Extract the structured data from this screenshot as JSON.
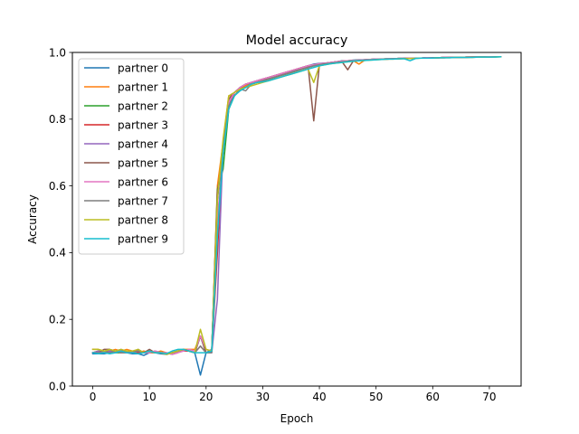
{
  "chart_data": {
    "type": "line",
    "title": "Model accuracy",
    "xlabel": "Epoch",
    "ylabel": "Accuracy",
    "xlim": [
      -3.6,
      75.6
    ],
    "ylim": [
      0,
      1
    ],
    "xticks": [
      0,
      10,
      20,
      30,
      40,
      50,
      60,
      70
    ],
    "yticks": [
      0.0,
      0.2,
      0.4,
      0.6,
      0.8,
      1.0
    ],
    "ytick_labels": [
      "0.0",
      "0.2",
      "0.4",
      "0.6",
      "0.8",
      "1.0"
    ],
    "grid": false,
    "legend_position": "top-left",
    "x": [
      0,
      1,
      2,
      3,
      4,
      5,
      6,
      7,
      8,
      9,
      10,
      11,
      12,
      13,
      14,
      15,
      16,
      17,
      18,
      19,
      20,
      21,
      22,
      23,
      24,
      25,
      26,
      27,
      28,
      29,
      30,
      31,
      32,
      33,
      34,
      35,
      36,
      37,
      38,
      39,
      40,
      41,
      42,
      43,
      44,
      45,
      46,
      47,
      48,
      49,
      50,
      51,
      52,
      53,
      54,
      55,
      56,
      57,
      58,
      59,
      60,
      61,
      62,
      63,
      64,
      65,
      66,
      67,
      68,
      69,
      70,
      71,
      72
    ],
    "series": [
      {
        "name": "partner 0",
        "color": "#1f77b4",
        "values": [
          0.097,
          0.097,
          0.097,
          0.1,
          0.1,
          0.105,
          0.1,
          0.097,
          0.097,
          0.092,
          0.1,
          0.1,
          0.097,
          0.095,
          0.1,
          0.105,
          0.11,
          0.105,
          0.1,
          0.033,
          0.1,
          0.11,
          0.56,
          0.7,
          0.84,
          0.88,
          0.895,
          0.9,
          0.91,
          0.915,
          0.92,
          0.92,
          0.925,
          0.93,
          0.935,
          0.94,
          0.948,
          0.955,
          0.96,
          0.965,
          0.967,
          0.968,
          0.97,
          0.972,
          0.975,
          0.975,
          0.977,
          0.978,
          0.978,
          0.979,
          0.98,
          0.98,
          0.981,
          0.981,
          0.982,
          0.982,
          0.983,
          0.983,
          0.983,
          0.984,
          0.984,
          0.984,
          0.985,
          0.985,
          0.985,
          0.985,
          0.986,
          0.986,
          0.986,
          0.986,
          0.987,
          0.987,
          0.987
        ]
      },
      {
        "name": "partner 1",
        "color": "#ff7f0e",
        "values": [
          0.11,
          0.11,
          0.105,
          0.105,
          0.11,
          0.105,
          0.11,
          0.105,
          0.1,
          0.105,
          0.1,
          0.1,
          0.105,
          0.1,
          0.095,
          0.1,
          0.11,
          0.11,
          0.11,
          0.15,
          0.11,
          0.105,
          0.6,
          0.73,
          0.87,
          0.87,
          0.89,
          0.9,
          0.905,
          0.91,
          0.915,
          0.92,
          0.925,
          0.93,
          0.935,
          0.94,
          0.945,
          0.95,
          0.955,
          0.96,
          0.963,
          0.965,
          0.968,
          0.97,
          0.972,
          0.974,
          0.975,
          0.965,
          0.977,
          0.978,
          0.979,
          0.98,
          0.98,
          0.981,
          0.981,
          0.982,
          0.982,
          0.983,
          0.983,
          0.984,
          0.984,
          0.984,
          0.985,
          0.985,
          0.985,
          0.985,
          0.986,
          0.986,
          0.986,
          0.986,
          0.987,
          0.987,
          0.987
        ]
      },
      {
        "name": "partner 2",
        "color": "#2ca02c",
        "values": [
          0.1,
          0.105,
          0.1,
          0.105,
          0.1,
          0.1,
          0.105,
          0.1,
          0.105,
          0.1,
          0.1,
          0.105,
          0.1,
          0.095,
          0.1,
          0.105,
          0.11,
          0.105,
          0.1,
          0.15,
          0.1,
          0.105,
          0.59,
          0.65,
          0.83,
          0.87,
          0.89,
          0.895,
          0.905,
          0.91,
          0.915,
          0.92,
          0.925,
          0.93,
          0.935,
          0.94,
          0.945,
          0.95,
          0.955,
          0.96,
          0.965,
          0.967,
          0.97,
          0.972,
          0.974,
          0.975,
          0.976,
          0.977,
          0.978,
          0.979,
          0.98,
          0.98,
          0.981,
          0.981,
          0.982,
          0.982,
          0.983,
          0.983,
          0.983,
          0.984,
          0.984,
          0.984,
          0.985,
          0.985,
          0.985,
          0.985,
          0.986,
          0.986,
          0.986,
          0.986,
          0.987,
          0.987,
          0.987
        ]
      },
      {
        "name": "partner 3",
        "color": "#d62728",
        "values": [
          0.1,
          0.1,
          0.105,
          0.1,
          0.105,
          0.1,
          0.1,
          0.105,
          0.1,
          0.1,
          0.105,
          0.1,
          0.1,
          0.095,
          0.1,
          0.105,
          0.105,
          0.105,
          0.1,
          0.12,
          0.1,
          0.105,
          0.4,
          0.72,
          0.83,
          0.88,
          0.895,
          0.905,
          0.91,
          0.915,
          0.92,
          0.925,
          0.93,
          0.935,
          0.94,
          0.945,
          0.95,
          0.955,
          0.96,
          0.963,
          0.966,
          0.968,
          0.97,
          0.972,
          0.974,
          0.975,
          0.976,
          0.977,
          0.978,
          0.979,
          0.98,
          0.98,
          0.981,
          0.981,
          0.982,
          0.982,
          0.983,
          0.983,
          0.983,
          0.984,
          0.984,
          0.984,
          0.985,
          0.985,
          0.985,
          0.985,
          0.986,
          0.986,
          0.986,
          0.986,
          0.987,
          0.987,
          0.987
        ]
      },
      {
        "name": "partner 4",
        "color": "#9467bd",
        "values": [
          0.1,
          0.105,
          0.1,
          0.105,
          0.1,
          0.105,
          0.1,
          0.1,
          0.105,
          0.1,
          0.1,
          0.105,
          0.1,
          0.1,
          0.095,
          0.1,
          0.11,
          0.105,
          0.1,
          0.15,
          0.1,
          0.1,
          0.26,
          0.72,
          0.85,
          0.88,
          0.895,
          0.905,
          0.91,
          0.915,
          0.92,
          0.925,
          0.93,
          0.935,
          0.94,
          0.945,
          0.95,
          0.955,
          0.96,
          0.963,
          0.966,
          0.968,
          0.97,
          0.972,
          0.974,
          0.975,
          0.976,
          0.977,
          0.978,
          0.979,
          0.98,
          0.98,
          0.981,
          0.981,
          0.982,
          0.982,
          0.983,
          0.983,
          0.983,
          0.984,
          0.984,
          0.984,
          0.985,
          0.985,
          0.985,
          0.985,
          0.986,
          0.986,
          0.986,
          0.986,
          0.987,
          0.987,
          0.987
        ]
      },
      {
        "name": "partner 5",
        "color": "#8c564b",
        "values": [
          0.1,
          0.1,
          0.11,
          0.11,
          0.105,
          0.11,
          0.1,
          0.1,
          0.11,
          0.1,
          0.11,
          0.1,
          0.1,
          0.095,
          0.1,
          0.105,
          0.11,
          0.105,
          0.1,
          0.15,
          0.1,
          0.105,
          0.58,
          0.7,
          0.86,
          0.88,
          0.895,
          0.905,
          0.91,
          0.915,
          0.92,
          0.925,
          0.93,
          0.935,
          0.94,
          0.945,
          0.95,
          0.955,
          0.96,
          0.795,
          0.963,
          0.966,
          0.968,
          0.97,
          0.972,
          0.948,
          0.975,
          0.976,
          0.977,
          0.978,
          0.979,
          0.98,
          0.98,
          0.981,
          0.981,
          0.982,
          0.982,
          0.983,
          0.983,
          0.983,
          0.984,
          0.984,
          0.984,
          0.985,
          0.985,
          0.985,
          0.985,
          0.986,
          0.986,
          0.986,
          0.986,
          0.987,
          0.987
        ]
      },
      {
        "name": "partner 6",
        "color": "#e377c2",
        "values": [
          0.1,
          0.1,
          0.105,
          0.1,
          0.1,
          0.105,
          0.1,
          0.1,
          0.105,
          0.1,
          0.1,
          0.105,
          0.1,
          0.1,
          0.095,
          0.1,
          0.105,
          0.11,
          0.105,
          0.15,
          0.11,
          0.105,
          0.5,
          0.7,
          0.85,
          0.88,
          0.895,
          0.905,
          0.91,
          0.915,
          0.92,
          0.925,
          0.93,
          0.935,
          0.94,
          0.945,
          0.95,
          0.955,
          0.96,
          0.963,
          0.966,
          0.968,
          0.97,
          0.972,
          0.974,
          0.975,
          0.976,
          0.977,
          0.978,
          0.979,
          0.98,
          0.98,
          0.981,
          0.981,
          0.982,
          0.982,
          0.983,
          0.983,
          0.983,
          0.984,
          0.984,
          0.984,
          0.985,
          0.985,
          0.985,
          0.985,
          0.986,
          0.986,
          0.986,
          0.986,
          0.987,
          0.987,
          0.987
        ]
      },
      {
        "name": "partner 7",
        "color": "#7f7f7f",
        "values": [
          0.1,
          0.1,
          0.105,
          0.1,
          0.105,
          0.1,
          0.1,
          0.1,
          0.105,
          0.1,
          0.105,
          0.1,
          0.1,
          0.095,
          0.1,
          0.105,
          0.11,
          0.105,
          0.1,
          0.12,
          0.1,
          0.1,
          0.45,
          0.72,
          0.84,
          0.87,
          0.89,
          0.885,
          0.905,
          0.91,
          0.915,
          0.92,
          0.925,
          0.93,
          0.935,
          0.94,
          0.945,
          0.95,
          0.955,
          0.96,
          0.963,
          0.966,
          0.968,
          0.97,
          0.972,
          0.974,
          0.975,
          0.976,
          0.977,
          0.978,
          0.979,
          0.98,
          0.98,
          0.981,
          0.981,
          0.982,
          0.982,
          0.983,
          0.983,
          0.983,
          0.984,
          0.984,
          0.984,
          0.985,
          0.985,
          0.985,
          0.985,
          0.986,
          0.986,
          0.986,
          0.986,
          0.987,
          0.987
        ]
      },
      {
        "name": "partner 8",
        "color": "#bcbd22",
        "values": [
          0.11,
          0.11,
          0.105,
          0.11,
          0.105,
          0.11,
          0.105,
          0.105,
          0.11,
          0.1,
          0.105,
          0.1,
          0.1,
          0.095,
          0.1,
          0.105,
          0.11,
          0.105,
          0.1,
          0.17,
          0.11,
          0.105,
          0.56,
          0.74,
          0.87,
          0.88,
          0.89,
          0.895,
          0.9,
          0.905,
          0.91,
          0.915,
          0.92,
          0.925,
          0.93,
          0.935,
          0.94,
          0.945,
          0.95,
          0.91,
          0.96,
          0.963,
          0.966,
          0.968,
          0.97,
          0.972,
          0.974,
          0.975,
          0.976,
          0.977,
          0.978,
          0.979,
          0.98,
          0.98,
          0.981,
          0.981,
          0.982,
          0.982,
          0.983,
          0.983,
          0.983,
          0.984,
          0.984,
          0.984,
          0.985,
          0.985,
          0.985,
          0.985,
          0.986,
          0.986,
          0.986,
          0.986,
          0.987
        ]
      },
      {
        "name": "partner 9",
        "color": "#17becf",
        "values": [
          0.1,
          0.097,
          0.1,
          0.097,
          0.1,
          0.105,
          0.1,
          0.1,
          0.097,
          0.1,
          0.105,
          0.1,
          0.1,
          0.097,
          0.105,
          0.11,
          0.11,
          0.105,
          0.1,
          0.1,
          0.1,
          0.105,
          0.45,
          0.7,
          0.83,
          0.87,
          0.885,
          0.895,
          0.905,
          0.91,
          0.912,
          0.915,
          0.92,
          0.925,
          0.93,
          0.935,
          0.94,
          0.945,
          0.95,
          0.955,
          0.96,
          0.963,
          0.966,
          0.968,
          0.97,
          0.972,
          0.974,
          0.975,
          0.976,
          0.977,
          0.978,
          0.979,
          0.98,
          0.98,
          0.981,
          0.981,
          0.975,
          0.982,
          0.983,
          0.983,
          0.983,
          0.984,
          0.984,
          0.984,
          0.985,
          0.985,
          0.985,
          0.985,
          0.986,
          0.986,
          0.986,
          0.986,
          0.987
        ]
      }
    ]
  }
}
